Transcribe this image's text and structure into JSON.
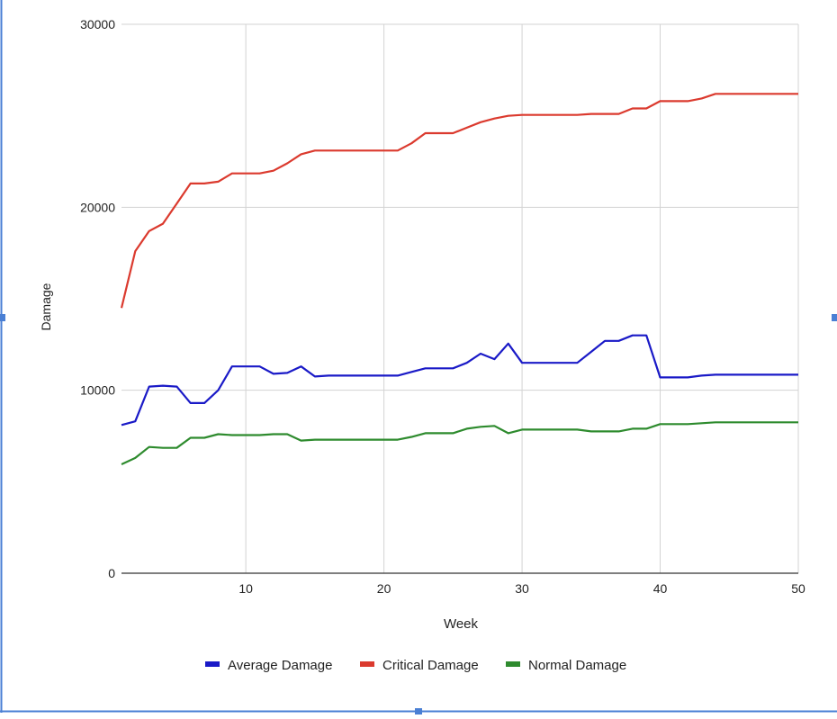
{
  "chart_data": {
    "type": "line",
    "title": "",
    "xlabel": "Week",
    "ylabel": "Damage",
    "xlim": [
      1,
      50
    ],
    "ylim": [
      0,
      30000
    ],
    "x_ticks": [
      10,
      20,
      30,
      40,
      50
    ],
    "y_ticks": [
      0,
      10000,
      20000,
      30000
    ],
    "grid": true,
    "legend_position": "bottom",
    "x": [
      1,
      2,
      3,
      4,
      5,
      6,
      7,
      8,
      9,
      10,
      11,
      12,
      13,
      14,
      15,
      16,
      17,
      18,
      19,
      20,
      21,
      22,
      23,
      24,
      25,
      26,
      27,
      28,
      29,
      30,
      31,
      32,
      33,
      34,
      35,
      36,
      37,
      38,
      39,
      40,
      41,
      42,
      43,
      44,
      45,
      46,
      47,
      48,
      49,
      50
    ],
    "series": [
      {
        "name": "Average Damage",
        "color": "#1a1ac7",
        "values": [
          8100,
          8300,
          10200,
          10250,
          10200,
          9300,
          9300,
          10000,
          11300,
          11300,
          11300,
          10900,
          10950,
          11300,
          10750,
          10800,
          10800,
          10800,
          10800,
          10800,
          10800,
          11000,
          11200,
          11200,
          11200,
          11500,
          12000,
          11700,
          12550,
          11500,
          11500,
          11500,
          11500,
          11500,
          12100,
          12700,
          12700,
          13000,
          13000,
          10700,
          10700,
          10700,
          10800,
          10850,
          10850,
          10850,
          10850,
          10850,
          10850,
          10850
        ]
      },
      {
        "name": "Critical Damage",
        "color": "#db3a2e",
        "values": [
          14500,
          17600,
          18700,
          19100,
          20200,
          21300,
          21300,
          21400,
          21850,
          21850,
          21850,
          22000,
          22400,
          22900,
          23100,
          23100,
          23100,
          23100,
          23100,
          23100,
          23100,
          23500,
          24050,
          24050,
          24050,
          24350,
          24650,
          24850,
          25000,
          25050,
          25050,
          25050,
          25050,
          25050,
          25100,
          25100,
          25100,
          25400,
          25400,
          25800,
          25800,
          25800,
          25950,
          26200,
          26200,
          26200,
          26200,
          26200,
          26200,
          26200
        ]
      },
      {
        "name": "Normal Damage",
        "color": "#2e8b2e",
        "values": [
          5950,
          6300,
          6900,
          6850,
          6850,
          7400,
          7400,
          7600,
          7550,
          7550,
          7550,
          7600,
          7600,
          7250,
          7300,
          7300,
          7300,
          7300,
          7300,
          7300,
          7300,
          7450,
          7650,
          7650,
          7650,
          7900,
          8000,
          8050,
          7650,
          7850,
          7850,
          7850,
          7850,
          7850,
          7750,
          7750,
          7750,
          7900,
          7900,
          8150,
          8150,
          8150,
          8200,
          8250,
          8250,
          8250,
          8250,
          8250,
          8250,
          8250
        ]
      }
    ]
  },
  "colors": {
    "gridline": "#d3d3d3",
    "axis": "#333333",
    "frame_border": "#4a7fd4",
    "text": "#222222"
  }
}
